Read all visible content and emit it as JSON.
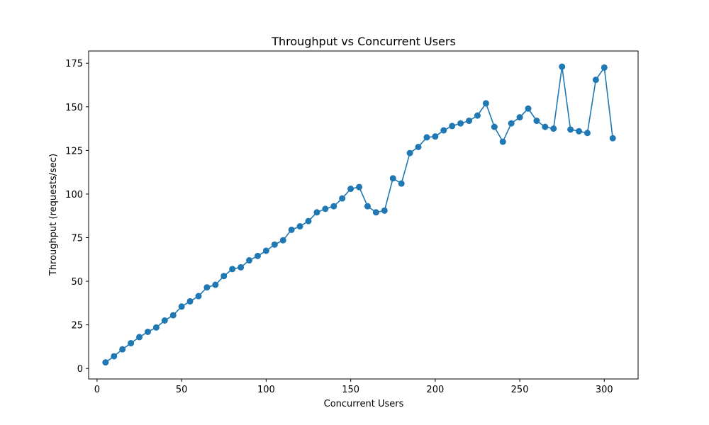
{
  "chart_data": {
    "type": "line",
    "title": "Throughput vs Concurrent Users",
    "xlabel": "Concurrent Users",
    "ylabel": "Throughput (requests/sec)",
    "xlim": [
      -5,
      320
    ],
    "ylim": [
      -6,
      182
    ],
    "xticks": [
      0,
      50,
      100,
      150,
      200,
      250,
      300
    ],
    "yticks": [
      0,
      25,
      50,
      75,
      100,
      125,
      150,
      175
    ],
    "grid": false,
    "marker": "circle",
    "series": [
      {
        "color": "#1f77b4",
        "x": [
          5,
          10,
          15,
          20,
          25,
          30,
          35,
          40,
          45,
          50,
          55,
          60,
          65,
          70,
          75,
          80,
          85,
          90,
          95,
          100,
          105,
          110,
          115,
          120,
          125,
          130,
          135,
          140,
          145,
          150,
          155,
          160,
          165,
          170,
          175,
          180,
          185,
          190,
          195,
          200,
          205,
          210,
          215,
          220,
          225,
          230,
          235,
          240,
          245,
          250,
          255,
          260,
          265,
          270,
          275,
          280,
          285,
          290,
          295,
          300,
          305
        ],
        "y": [
          3.5,
          7,
          11,
          14.5,
          18,
          21,
          23.5,
          27.5,
          30.5,
          35.5,
          38.5,
          41.5,
          46.5,
          48,
          53,
          57,
          58,
          62,
          64.5,
          67.5,
          71,
          73.5,
          79.5,
          81.5,
          84.5,
          89.5,
          91.5,
          93,
          97.5,
          103,
          104,
          93,
          89.5,
          90.5,
          109,
          106,
          123.5,
          127,
          132.5,
          133,
          136.5,
          139,
          140.5,
          142,
          145,
          152,
          138.5,
          130,
          140.5,
          144,
          149,
          142,
          138.5,
          137.5,
          173,
          137,
          136,
          135,
          165.5,
          172.5,
          132
        ]
      }
    ]
  }
}
